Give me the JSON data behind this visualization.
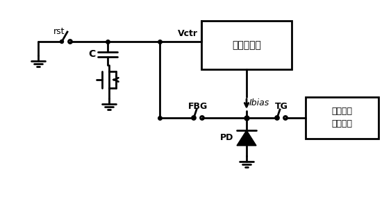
{
  "title": "",
  "background_color": "#ffffff",
  "line_color": "#000000",
  "line_width": 2.0,
  "text_color": "#000000",
  "labels": {
    "rst": "rst",
    "C": "C",
    "Vctr": "Vctr",
    "vccs_zh": "压控电流源",
    "Ibias": "Ibias",
    "FBG": "FBG",
    "TG": "TG",
    "PD": "PD",
    "charge_amp_zh": "电荷积分\n放大电路"
  },
  "figsize": [
    5.63,
    3.0
  ],
  "dpi": 100
}
